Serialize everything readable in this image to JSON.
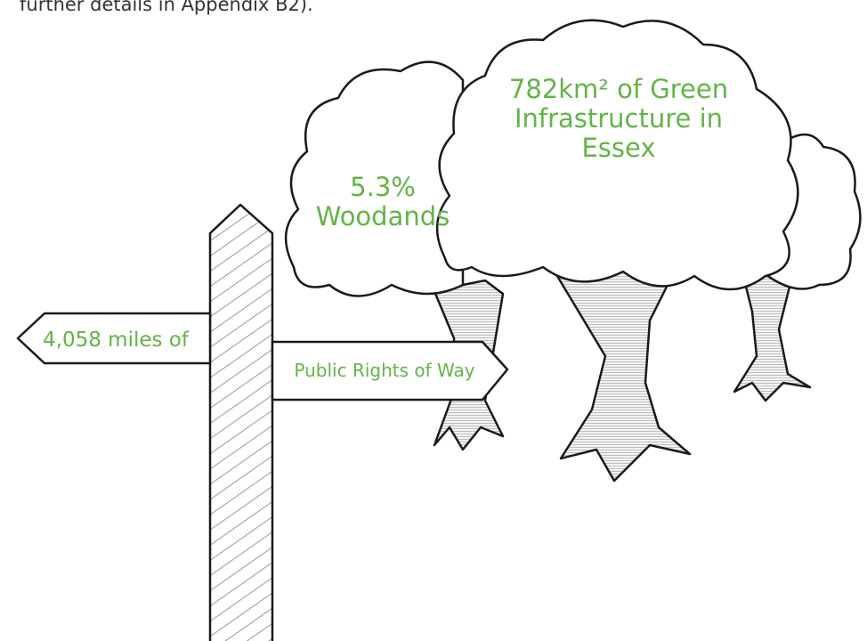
{
  "intro_text": "further details in Appendix B2).",
  "trees": {
    "main_label": [
      "782km² of Green",
      "Infrastructure in",
      "Essex"
    ],
    "side_label": [
      "5.3%",
      "Woodands"
    ]
  },
  "signpost": {
    "left_sign": "4,058 miles of",
    "right_sign": "Public Rights of Way"
  }
}
